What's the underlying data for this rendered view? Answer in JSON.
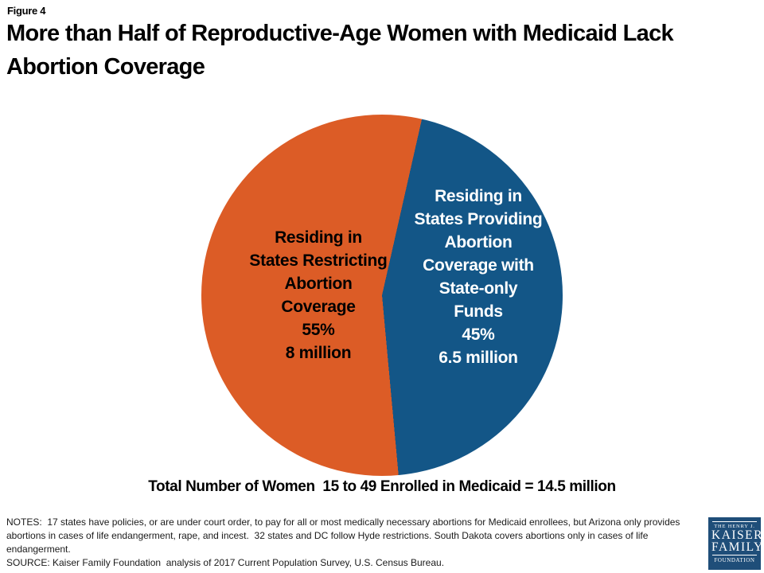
{
  "header": {
    "figure_label": "Figure 4",
    "title_lines": [
      "More than Half of Reproductive-Age Women with Medicaid Lack",
      "Abortion Coverage"
    ]
  },
  "chart_data": {
    "type": "pie",
    "title": "More than Half of Reproductive-Age Women with Medicaid Lack Abortion Coverage",
    "start_angle_deg": 174.75,
    "legend_position": "inside",
    "slices": [
      {
        "label": "Residing in States Restricting Abortion Coverage",
        "percent": 55,
        "value_label": "8 million",
        "color": "#DC5C26",
        "text_color": "#000000",
        "label_lines": [
          "Residing in",
          "States Restricting",
          "Abortion",
          "Coverage",
          "55%",
          "8 million"
        ]
      },
      {
        "label": "Residing in States Providing Abortion Coverage with State-only Funds",
        "percent": 45,
        "value_label": "6.5 million",
        "color": "#135687",
        "text_color": "#FFFFFF",
        "label_lines": [
          "Residing in",
          "States Providing",
          "Abortion",
          "Coverage with",
          "State-only",
          "Funds",
          "45%",
          "6.5 million"
        ]
      }
    ],
    "total_label": "Total Number of Women  15 to 49 Enrolled in Medicaid = 14.5 million"
  },
  "footer": {
    "notes": "NOTES:  17 states have policies, or are under court order, to pay for all or most medically necessary abortions for Medicaid enrollees, but Arizona only provides abortions in cases of life endangerment, rape, and incest.  32 states and DC follow Hyde restrictions. South Dakota covers abortions only in cases of life endangerment.",
    "source": "SOURCE: Kaiser Family Foundation  analysis of 2017 Current Population Survey, U.S. Census Bureau."
  },
  "logo": {
    "bg_color": "#1F4E79",
    "tagline": "THE HENRY J.",
    "name_line1": "KAISER",
    "name_line2": "FAMILY",
    "bottom": "FOUNDATION"
  }
}
